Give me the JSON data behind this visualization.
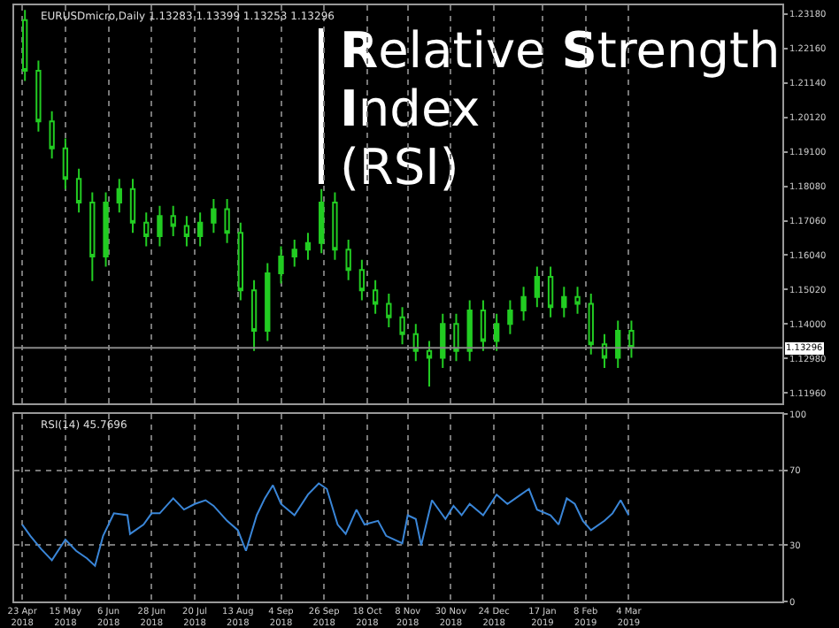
{
  "chart_data": [
    {
      "type": "candlestick",
      "title": "Relative Strength\nIndex\n(RSI)",
      "annotations": [
        "EURUSDmicro,Daily 1.13283 1.13399 1.13253 1.13296"
      ],
      "x": [
        "2018-04-23",
        "2018-04-30",
        "2018-05-07",
        "2018-05-14",
        "2018-05-21",
        "2018-05-28",
        "2018-06-04",
        "2018-06-11",
        "2018-06-18",
        "2018-06-25",
        "2018-07-02",
        "2018-07-09",
        "2018-07-16",
        "2018-07-23",
        "2018-07-30",
        "2018-08-06",
        "2018-08-13",
        "2018-08-20",
        "2018-08-27",
        "2018-09-03",
        "2018-09-10",
        "2018-09-17",
        "2018-09-24",
        "2018-10-01",
        "2018-10-08",
        "2018-10-15",
        "2018-10-22",
        "2018-10-29",
        "2018-11-05",
        "2018-11-12",
        "2018-11-19",
        "2018-11-26",
        "2018-12-03",
        "2018-12-10",
        "2018-12-17",
        "2018-12-24",
        "2018-12-31",
        "2019-01-07",
        "2019-01-14",
        "2019-01-21",
        "2019-01-28",
        "2019-02-04",
        "2019-02-11",
        "2019-02-18",
        "2019-02-25",
        "2019-03-04"
      ],
      "series": [
        {
          "color": "#22cc22",
          "ohlc": [
            [
              1.23,
              1.233,
              1.212,
              1.215
            ],
            [
              1.215,
              1.218,
              1.197,
              1.2
            ],
            [
              1.2,
              1.203,
              1.189,
              1.192
            ],
            [
              1.192,
              1.195,
              1.18,
              1.183
            ],
            [
              1.183,
              1.186,
              1.173,
              1.176
            ],
            [
              1.176,
              1.179,
              1.1527,
              1.16
            ],
            [
              1.16,
              1.179,
              1.157,
              1.176
            ],
            [
              1.176,
              1.183,
              1.173,
              1.18
            ],
            [
              1.18,
              1.183,
              1.167,
              1.17
            ],
            [
              1.17,
              1.173,
              1.163,
              1.166
            ],
            [
              1.166,
              1.175,
              1.163,
              1.172
            ],
            [
              1.172,
              1.175,
              1.166,
              1.169
            ],
            [
              1.169,
              1.172,
              1.163,
              1.166
            ],
            [
              1.166,
              1.173,
              1.163,
              1.17
            ],
            [
              1.17,
              1.177,
              1.167,
              1.174
            ],
            [
              1.174,
              1.177,
              1.164,
              1.167
            ],
            [
              1.167,
              1.17,
              1.147,
              1.15
            ],
            [
              1.15,
              1.153,
              1.132,
              1.138
            ],
            [
              1.138,
              1.158,
              1.135,
              1.155
            ],
            [
              1.155,
              1.163,
              1.152,
              1.16
            ],
            [
              1.16,
              1.165,
              1.157,
              1.162
            ],
            [
              1.162,
              1.167,
              1.159,
              1.164
            ],
            [
              1.164,
              1.18,
              1.161,
              1.176
            ],
            [
              1.176,
              1.179,
              1.159,
              1.162
            ],
            [
              1.162,
              1.165,
              1.153,
              1.156
            ],
            [
              1.156,
              1.159,
              1.147,
              1.15
            ],
            [
              1.15,
              1.153,
              1.143,
              1.146
            ],
            [
              1.146,
              1.149,
              1.139,
              1.142
            ],
            [
              1.142,
              1.145,
              1.134,
              1.137
            ],
            [
              1.137,
              1.14,
              1.129,
              1.132
            ],
            [
              1.132,
              1.135,
              1.1215,
              1.13
            ],
            [
              1.13,
              1.143,
              1.127,
              1.14
            ],
            [
              1.14,
              1.143,
              1.129,
              1.132
            ],
            [
              1.132,
              1.147,
              1.129,
              1.144
            ],
            [
              1.144,
              1.147,
              1.132,
              1.135
            ],
            [
              1.135,
              1.143,
              1.132,
              1.14
            ],
            [
              1.14,
              1.147,
              1.137,
              1.144
            ],
            [
              1.144,
              1.151,
              1.141,
              1.148
            ],
            [
              1.148,
              1.157,
              1.145,
              1.154
            ],
            [
              1.154,
              1.157,
              1.142,
              1.145
            ],
            [
              1.145,
              1.151,
              1.142,
              1.148
            ],
            [
              1.148,
              1.151,
              1.143,
              1.146
            ],
            [
              1.146,
              1.149,
              1.131,
              1.134
            ],
            [
              1.134,
              1.137,
              1.127,
              1.13
            ],
            [
              1.13,
              1.141,
              1.127,
              1.138
            ],
            [
              1.138,
              1.141,
              1.13,
              1.133
            ]
          ]
        }
      ],
      "xlim": [
        "2018-04-18",
        "2019-05-22"
      ],
      "xticks": [
        {
          "value": "2018-04-23",
          "label": null
        },
        {
          "value": "2018-05-15",
          "label": null
        },
        {
          "value": "2018-06-06",
          "label": null
        },
        {
          "value": "2018-06-28",
          "label": null
        },
        {
          "value": "2018-07-20",
          "label": null
        },
        {
          "value": "2018-08-13",
          "label": null
        },
        {
          "value": "2018-09-04",
          "label": null
        },
        {
          "value": "2018-09-26",
          "label": null
        },
        {
          "value": "2018-10-18",
          "label": null
        },
        {
          "value": "2018-11-08",
          "label": null
        },
        {
          "value": "2018-11-30",
          "label": null
        },
        {
          "value": "2018-12-24",
          "label": null
        },
        {
          "value": "2019-01-17",
          "label": null
        },
        {
          "value": "2019-02-08",
          "label": null
        },
        {
          "value": "2019-03-04",
          "label": null
        }
      ],
      "ylim": [
        1.1165,
        1.2344
      ],
      "yticks": [
        {
          "value": 1.1196,
          "label": "1.11960"
        },
        {
          "value": 1.1298,
          "label": "1.12980"
        },
        {
          "value": 1.14,
          "label": "1.14000"
        },
        {
          "value": 1.1502,
          "label": "1.15020"
        },
        {
          "value": 1.1604,
          "label": "1.16040"
        },
        {
          "value": 1.1706,
          "label": "1.17060"
        },
        {
          "value": 1.1808,
          "label": "1.18080"
        },
        {
          "value": 1.191,
          "label": "1.19100"
        },
        {
          "value": 1.2012,
          "label": "1.20120"
        },
        {
          "value": 1.2114,
          "label": "1.21140"
        },
        {
          "value": 1.2216,
          "label": "1.22160"
        },
        {
          "value": 1.2318,
          "label": "1.23180"
        }
      ],
      "ref_lines": [
        {
          "axis": "y",
          "value": 1.13296,
          "label": "1.13296",
          "color": "#888888"
        }
      ],
      "grid": "x",
      "tick_labels": "y"
    },
    {
      "type": "line",
      "annotations": [
        "RSI(14) 45.7696"
      ],
      "series": [
        {
          "color": "#3a86d8",
          "x": [
            "2018-04-23",
            "2018-04-26",
            "2018-05-02",
            "2018-05-08",
            "2018-05-15",
            "2018-05-21",
            "2018-05-25",
            "2018-05-30",
            "2018-06-04",
            "2018-06-08",
            "2018-06-15",
            "2018-06-18",
            "2018-06-25",
            "2018-06-28",
            "2018-07-03",
            "2018-07-10",
            "2018-07-16",
            "2018-07-20",
            "2018-07-26",
            "2018-07-31",
            "2018-08-07",
            "2018-08-13",
            "2018-08-16",
            "2018-08-22",
            "2018-08-27",
            "2018-08-30",
            "2018-09-04",
            "2018-09-11",
            "2018-09-18",
            "2018-09-24",
            "2018-09-27",
            "2018-10-03",
            "2018-10-08",
            "2018-10-12",
            "2018-10-17",
            "2018-10-24",
            "2018-10-29",
            "2018-11-06",
            "2018-11-08",
            "2018-11-13",
            "2018-11-15",
            "2018-11-21",
            "2018-11-28",
            "2018-12-03",
            "2018-12-06",
            "2018-12-11",
            "2018-12-18",
            "2018-12-25",
            "2018-12-31",
            "2019-01-03",
            "2019-01-10",
            "2019-01-15",
            "2019-01-22",
            "2019-01-25",
            "2019-01-30",
            "2019-02-04",
            "2019-02-07",
            "2019-02-12",
            "2019-02-19",
            "2019-02-22",
            "2019-02-27",
            "2019-03-04"
          ],
          "values": [
            41,
            35,
            28,
            22,
            33,
            27,
            23,
            19,
            35,
            47,
            46,
            36,
            41,
            47,
            47,
            55,
            49,
            52,
            54,
            51,
            43,
            38,
            27,
            46,
            55,
            62,
            52,
            46,
            57,
            63,
            60,
            41,
            36,
            49,
            41,
            43,
            35,
            31,
            46,
            44,
            30,
            54,
            44,
            51,
            46,
            52,
            46,
            57,
            52,
            55,
            60,
            49,
            46,
            41,
            55,
            52,
            43,
            38,
            43,
            47,
            54,
            46
          ]
        }
      ],
      "xlim": [
        "2018-04-18",
        "2019-05-22"
      ],
      "xticks": [
        {
          "value": "2018-04-23",
          "label": "23 Apr 2018"
        },
        {
          "value": "2018-05-15",
          "label": "15 May 2018"
        },
        {
          "value": "2018-06-06",
          "label": "6 Jun 2018"
        },
        {
          "value": "2018-06-28",
          "label": "28 Jun 2018"
        },
        {
          "value": "2018-07-20",
          "label": "20 Jul 2018"
        },
        {
          "value": "2018-08-13",
          "label": "13 Aug 2018"
        },
        {
          "value": "2018-09-04",
          "label": "4 Sep 2018"
        },
        {
          "value": "2018-09-26",
          "label": "26 Sep 2018"
        },
        {
          "value": "2018-10-18",
          "label": "18 Oct 2018"
        },
        {
          "value": "2018-11-08",
          "label": "8 Nov 2018"
        },
        {
          "value": "2018-11-30",
          "label": "30 Nov 2018"
        },
        {
          "value": "2018-12-24",
          "label": "24 Dec 2018"
        },
        {
          "value": "2019-01-17",
          "label": "17 Jan 2019"
        },
        {
          "value": "2019-02-08",
          "label": "8 Feb 2019"
        },
        {
          "value": "2019-03-04",
          "label": "4 Mar 2019"
        }
      ],
      "ylim": [
        0,
        100
      ],
      "yticks": [
        0,
        30,
        70,
        100
      ],
      "grid": true
    }
  ]
}
